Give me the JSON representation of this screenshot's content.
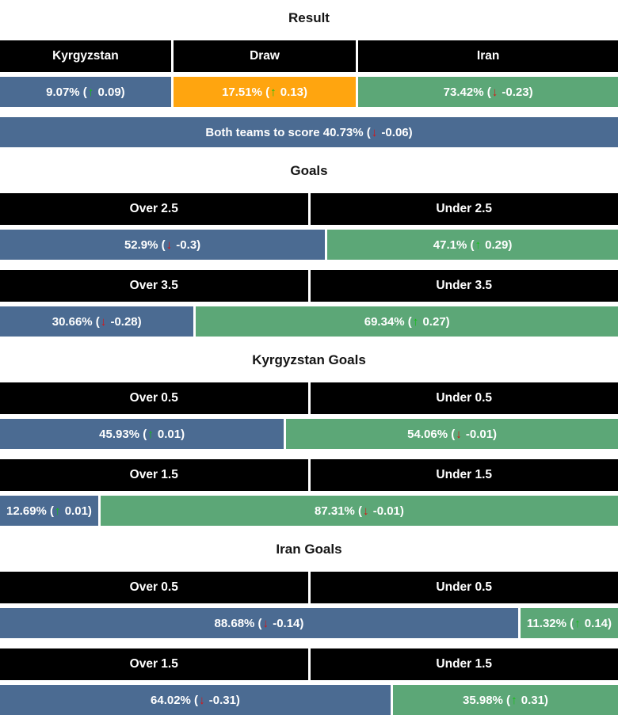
{
  "widget_name": "match-prediction-stats",
  "colors": {
    "header_bg": "#000000",
    "header_text": "#ffffff",
    "bar_text": "#ffffff",
    "bar_blue": "#4b6b92",
    "bar_orange": "#ffa50f",
    "bar_green": "#5ca777",
    "trend_up": "#12c112",
    "trend_down": "#dd1111",
    "title_text": "#141414"
  },
  "icons": {
    "up_arrow": "↑",
    "down_arrow": "↓"
  },
  "chart_data": {
    "type": "bar",
    "unit": "percent",
    "sections": [
      {
        "title": "Result",
        "rows": [
          {
            "type": "headers",
            "basis": "200px",
            "cells": [
              {
                "label": "Kyrgyzstan",
                "grow": 9.07
              },
              {
                "label": "Draw",
                "grow": 17.51
              },
              {
                "label": "Iran",
                "grow": 73.42
              }
            ]
          },
          {
            "type": "bars",
            "basis": "200px",
            "cells": [
              {
                "value": 9.07,
                "display": "9.07%",
                "trend": "up",
                "delta": "0.09",
                "color": "blue",
                "grow": 9.07
              },
              {
                "value": 17.51,
                "display": "17.51%",
                "trend": "up",
                "delta": "0.13",
                "color": "orange",
                "grow": 17.51
              },
              {
                "value": 73.42,
                "display": "73.42%",
                "trend": "down",
                "delta": "-0.23",
                "color": "green",
                "grow": 73.42
              }
            ]
          },
          {
            "type": "bars",
            "cells": [
              {
                "prefix": "Both teams to score",
                "value": 40.73,
                "display": "40.73%",
                "trend": "down",
                "delta": "-0.06",
                "color": "blue",
                "grow": 100
              }
            ]
          }
        ]
      },
      {
        "title": "Goals",
        "rows": [
          {
            "type": "headers",
            "cells": [
              {
                "label": "Over 2.5",
                "grow": 1
              },
              {
                "label": "Under 2.5",
                "grow": 1
              }
            ]
          },
          {
            "type": "bars",
            "cells": [
              {
                "value": 52.9,
                "display": "52.9%",
                "trend": "down",
                "delta": "-0.3",
                "color": "blue",
                "grow": 52.9
              },
              {
                "value": 47.1,
                "display": "47.1%",
                "trend": "up",
                "delta": "0.29",
                "color": "green",
                "grow": 47.1
              }
            ]
          },
          {
            "type": "headers",
            "cells": [
              {
                "label": "Over 3.5",
                "grow": 1
              },
              {
                "label": "Under 3.5",
                "grow": 1
              }
            ]
          },
          {
            "type": "bars",
            "cells": [
              {
                "value": 30.66,
                "display": "30.66%",
                "trend": "down",
                "delta": "-0.28",
                "color": "blue",
                "grow": 30.66
              },
              {
                "value": 69.34,
                "display": "69.34%",
                "trend": "up",
                "delta": "0.27",
                "color": "green",
                "grow": 69.34
              }
            ]
          }
        ]
      },
      {
        "title": "Kyrgyzstan Goals",
        "rows": [
          {
            "type": "headers",
            "cells": [
              {
                "label": "Over 0.5",
                "grow": 1
              },
              {
                "label": "Under 0.5",
                "grow": 1
              }
            ]
          },
          {
            "type": "bars",
            "cells": [
              {
                "value": 45.93,
                "display": "45.93%",
                "trend": "up",
                "delta": "0.01",
                "color": "blue",
                "grow": 45.93
              },
              {
                "value": 54.06,
                "display": "54.06%",
                "trend": "down",
                "delta": "-0.01",
                "color": "green",
                "grow": 54.06
              }
            ]
          },
          {
            "type": "headers",
            "cells": [
              {
                "label": "Over 1.5",
                "grow": 1
              },
              {
                "label": "Under 1.5",
                "grow": 1
              }
            ]
          },
          {
            "type": "bars",
            "cells": [
              {
                "value": 12.69,
                "display": "12.69%",
                "trend": "up",
                "delta": "0.01",
                "color": "blue",
                "grow": 12.69
              },
              {
                "value": 87.31,
                "display": "87.31%",
                "trend": "down",
                "delta": "-0.01",
                "color": "green",
                "grow": 87.31
              }
            ]
          }
        ]
      },
      {
        "title": "Iran Goals",
        "rows": [
          {
            "type": "headers",
            "cells": [
              {
                "label": "Over 0.5",
                "grow": 1
              },
              {
                "label": "Under 0.5",
                "grow": 1
              }
            ]
          },
          {
            "type": "bars",
            "cells": [
              {
                "value": 88.68,
                "display": "88.68%",
                "trend": "down",
                "delta": "-0.14",
                "color": "blue",
                "grow": 88.68
              },
              {
                "value": 11.32,
                "display": "11.32%",
                "trend": "up",
                "delta": "0.14",
                "color": "green",
                "grow": 11.32
              }
            ]
          },
          {
            "type": "headers",
            "cells": [
              {
                "label": "Over 1.5",
                "grow": 1
              },
              {
                "label": "Under 1.5",
                "grow": 1
              }
            ]
          },
          {
            "type": "bars",
            "cells": [
              {
                "value": 64.02,
                "display": "64.02%",
                "trend": "down",
                "delta": "-0.31",
                "color": "blue",
                "grow": 64.02
              },
              {
                "value": 35.98,
                "display": "35.98%",
                "trend": "up",
                "delta": "0.31",
                "color": "green",
                "grow": 35.98
              }
            ]
          }
        ]
      }
    ]
  }
}
